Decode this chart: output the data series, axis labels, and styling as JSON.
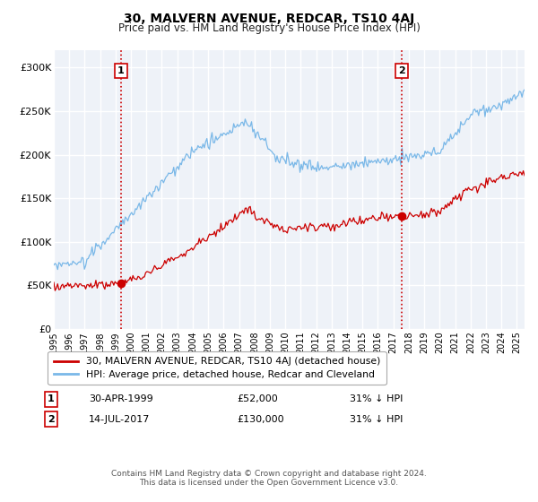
{
  "title": "30, MALVERN AVENUE, REDCAR, TS10 4AJ",
  "subtitle": "Price paid vs. HM Land Registry's House Price Index (HPI)",
  "xlim_start": 1995.0,
  "xlim_end": 2025.5,
  "ylim": [
    0,
    320000
  ],
  "yticks": [
    0,
    50000,
    100000,
    150000,
    200000,
    250000,
    300000
  ],
  "ytick_labels": [
    "£0",
    "£50K",
    "£100K",
    "£150K",
    "£200K",
    "£250K",
    "£300K"
  ],
  "xticks": [
    1995,
    1996,
    1997,
    1998,
    1999,
    2000,
    2001,
    2002,
    2003,
    2004,
    2005,
    2006,
    2007,
    2008,
    2009,
    2010,
    2011,
    2012,
    2013,
    2014,
    2015,
    2016,
    2017,
    2018,
    2019,
    2020,
    2021,
    2022,
    2023,
    2024,
    2025
  ],
  "transaction1_date": 1999.33,
  "transaction1_price": 52000,
  "transaction1_text": "30-APR-1999",
  "transaction1_amount": "£52,000",
  "transaction1_hpi": "31% ↓ HPI",
  "transaction2_date": 2017.54,
  "transaction2_price": 130000,
  "transaction2_text": "14-JUL-2017",
  "transaction2_amount": "£130,000",
  "transaction2_hpi": "31% ↓ HPI",
  "hpi_color": "#7ab8e8",
  "price_color": "#cc0000",
  "vline_color": "#cc0000",
  "background_color": "#eef2f8",
  "grid_color": "#ffffff",
  "legend_label_price": "30, MALVERN AVENUE, REDCAR, TS10 4AJ (detached house)",
  "legend_label_hpi": "HPI: Average price, detached house, Redcar and Cleveland",
  "footer": "Contains HM Land Registry data © Crown copyright and database right 2024.\nThis data is licensed under the Open Government Licence v3.0."
}
